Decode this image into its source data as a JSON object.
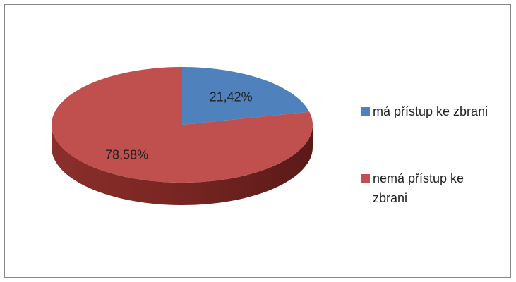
{
  "chart_data": {
    "type": "pie",
    "categories": [
      "má přístup ke zbrani",
      "nemá přístup ke zbrani"
    ],
    "values": [
      21.42,
      78.58
    ],
    "value_labels": [
      "21,42%",
      "78,58%"
    ],
    "colors": [
      "#4f81bd",
      "#c0504d"
    ],
    "legend": "right"
  }
}
